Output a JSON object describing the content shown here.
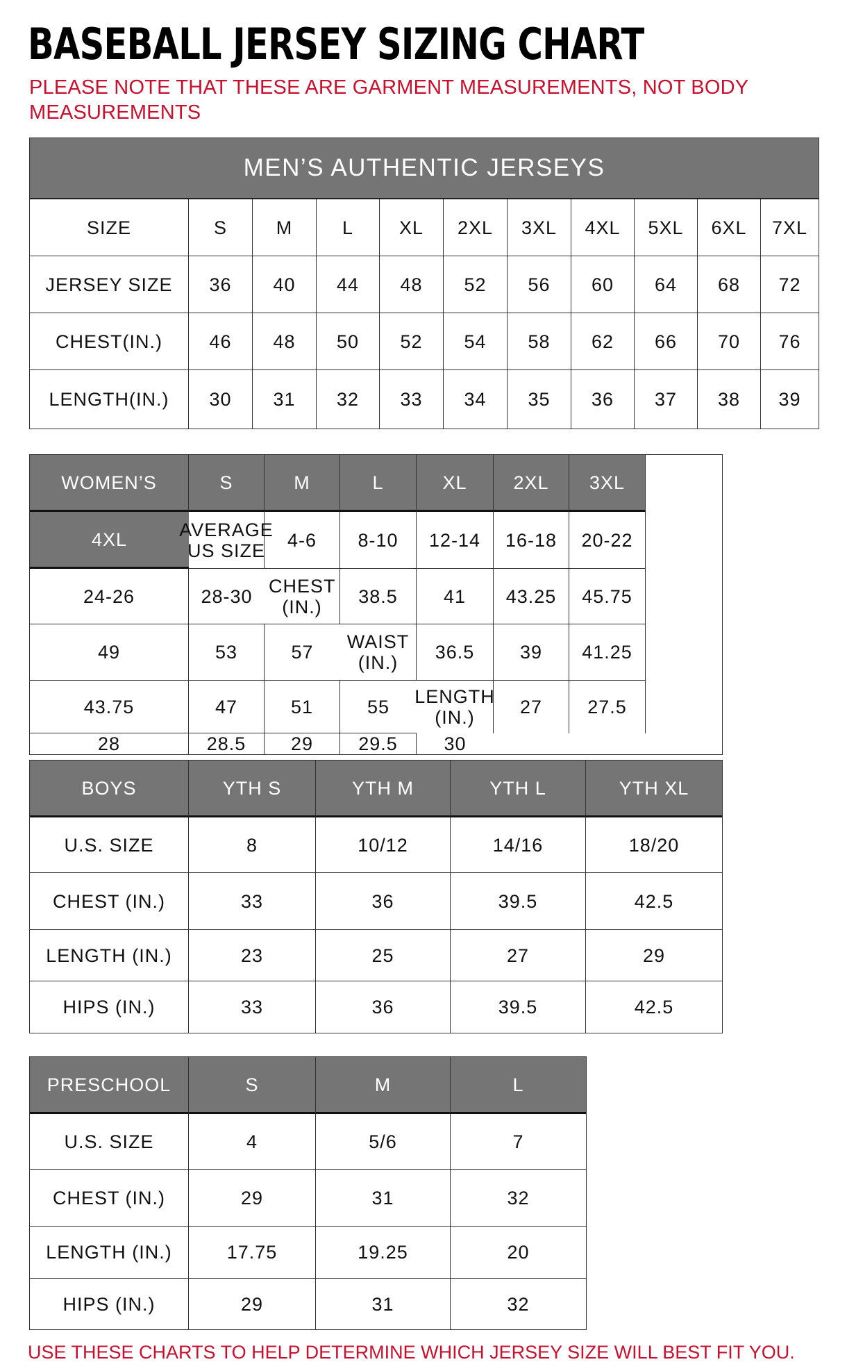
{
  "title": "BASEBALL JERSEY SIZING CHART",
  "note": "PLEASE NOTE THAT THESE ARE GARMENT MEASUREMENTS, NOT BODY MEASUREMENTS",
  "footer": "USE THESE CHARTS TO HELP DETERMINE WHICH JERSEY SIZE WILL BEST FIT YOU.",
  "colors": {
    "header_bg": "#757575",
    "note_red": "#c8102e"
  },
  "tables": [
    {
      "id": "mens",
      "banner": "MEN’S AUTHENTIC JERSEYS",
      "header_style": "white",
      "header": [
        "SIZE",
        "S",
        "M",
        "L",
        "XL",
        "2XL",
        "3XL",
        "4XL",
        "5XL",
        "6XL",
        "7XL"
      ],
      "rows": [
        [
          "JERSEY SIZE",
          "36",
          "40",
          "44",
          "48",
          "52",
          "56",
          "60",
          "64",
          "68",
          "72"
        ],
        [
          "CHEST(IN.)",
          "46",
          "48",
          "50",
          "52",
          "54",
          "58",
          "62",
          "66",
          "70",
          "76"
        ],
        [
          "LENGTH(IN.)",
          "30",
          "31",
          "32",
          "33",
          "34",
          "35",
          "36",
          "37",
          "38",
          "39"
        ]
      ]
    },
    {
      "id": "womens",
      "header_style": "gray",
      "header": [
        "WOMEN’S",
        "S",
        "M",
        "L",
        "XL",
        "2XL",
        "3XL",
        "4XL"
      ],
      "rows": [
        [
          "AVERAGE US SIZE",
          "4-6",
          "8-10",
          "12-14",
          "16-18",
          "20-22",
          "24-26",
          "28-30"
        ],
        [
          "CHEST (IN.)",
          "38.5",
          "41",
          "43.25",
          "45.75",
          "49",
          "53",
          "57"
        ],
        [
          "WAIST (IN.)",
          "36.5",
          "39",
          "41.25",
          "43.75",
          "47",
          "51",
          "55"
        ],
        [
          "LENGTH (IN.)",
          "27",
          "27.5",
          "28",
          "28.5",
          "29",
          "29.5",
          "30"
        ]
      ]
    },
    {
      "id": "boys",
      "header_style": "gray",
      "header": [
        "BOYS",
        "YTH S",
        "YTH M",
        "YTH L",
        "YTH XL"
      ],
      "rows": [
        [
          "U.S. SIZE",
          "8",
          "10/12",
          "14/16",
          "18/20"
        ],
        [
          "CHEST (IN.)",
          "33",
          "36",
          "39.5",
          "42.5"
        ],
        [
          "LENGTH (IN.)",
          "23",
          "25",
          "27",
          "29"
        ],
        [
          "HIPS (IN.)",
          "33",
          "36",
          "39.5",
          "42.5"
        ]
      ]
    },
    {
      "id": "preschool",
      "header_style": "gray",
      "header": [
        "PRESCHOOL",
        "S",
        "M",
        "L"
      ],
      "rows": [
        [
          "U.S. SIZE",
          "4",
          "5/6",
          "7"
        ],
        [
          "CHEST (IN.)",
          "29",
          "31",
          "32"
        ],
        [
          "LENGTH (IN.)",
          "17.75",
          "19.25",
          "20"
        ],
        [
          "HIPS (IN.)",
          "29",
          "31",
          "32"
        ]
      ]
    }
  ]
}
